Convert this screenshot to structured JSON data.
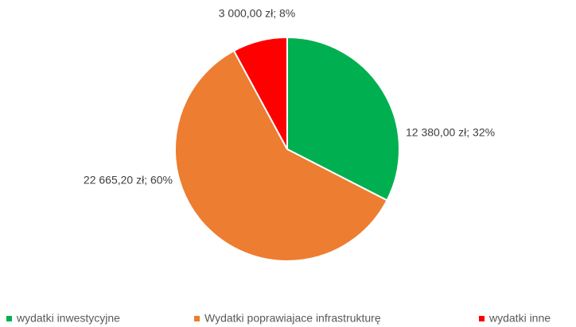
{
  "chart_data": {
    "type": "pie",
    "categories": [
      "wydatki inwestycyjne",
      "Wydatki poprawiajace infrastrukturę",
      "wydatki inne"
    ],
    "values": [
      12380,
      22665.2,
      3000
    ],
    "value_labels": [
      "12 380,00 zł; 32%",
      "22 665,20 zł; 60%",
      "3 000,00 zł; 8%"
    ],
    "colors": [
      "#00b050",
      "#ed7d31",
      "#ff0000"
    ],
    "legend": "bottom"
  }
}
